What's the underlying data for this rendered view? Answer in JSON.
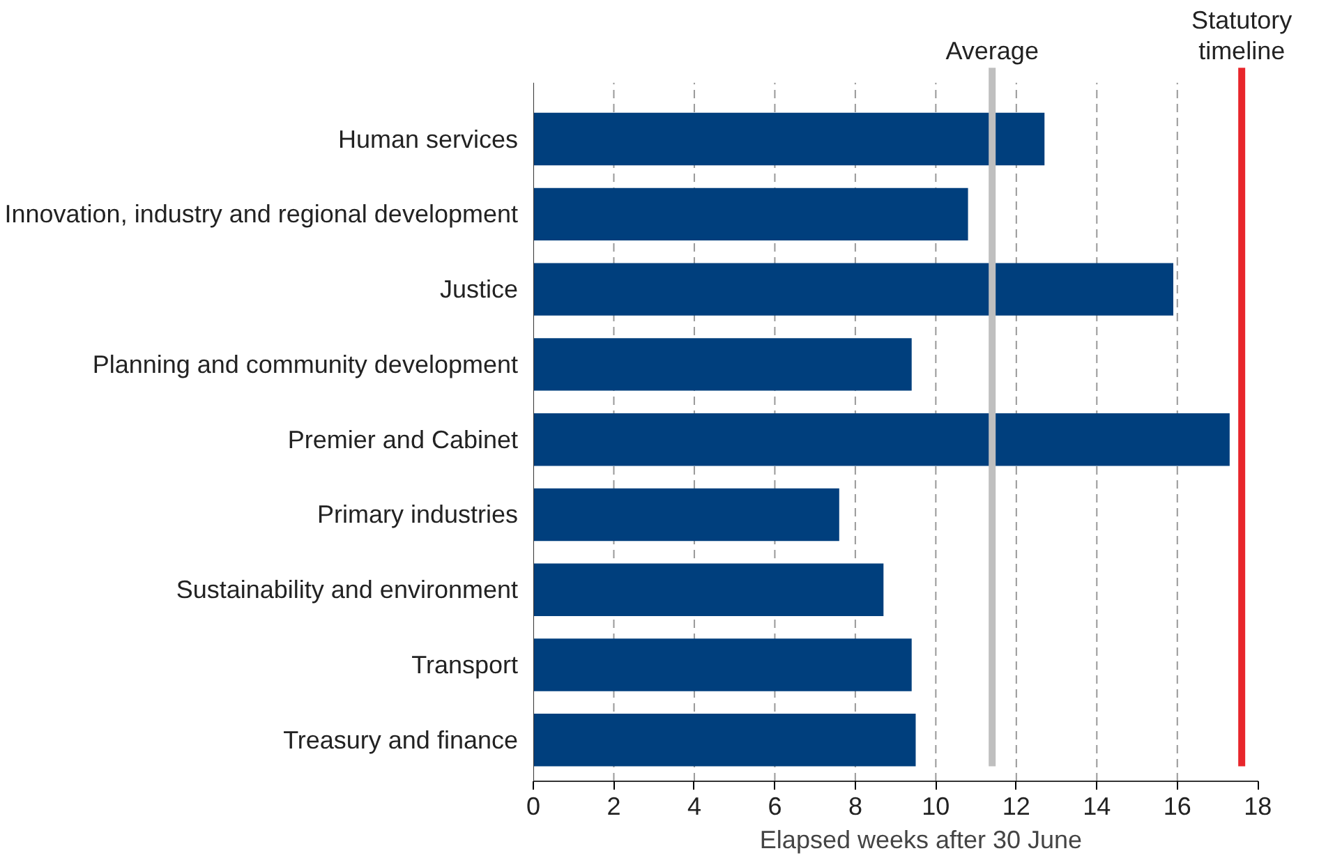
{
  "chart_data": {
    "type": "bar",
    "orientation": "horizontal",
    "xlabel": "Elapsed weeks after 30 June",
    "categories": [
      "Human services",
      "Innovation, industry and regional development",
      "Justice",
      "Planning and community development",
      "Premier and Cabinet",
      "Primary industries",
      "Sustainability and environment",
      "Transport",
      "Treasury and finance"
    ],
    "values": [
      12.7,
      10.8,
      15.9,
      9.4,
      17.3,
      7.6,
      8.7,
      9.4,
      9.5
    ],
    "color": "#003f7d",
    "xlim": [
      0,
      18
    ],
    "xticks": [
      0,
      2,
      4,
      6,
      8,
      10,
      12,
      14,
      16,
      18
    ],
    "grid": "x",
    "ref_lines": [
      {
        "axis": "x",
        "value": 11.4,
        "label": "Average",
        "color": "#bfbfbf",
        "line_style": "solid"
      },
      {
        "axis": "x",
        "value": 17.6,
        "label": "Statutory\ntimeline",
        "color": "#e8262b",
        "line_style": "solid"
      }
    ]
  }
}
